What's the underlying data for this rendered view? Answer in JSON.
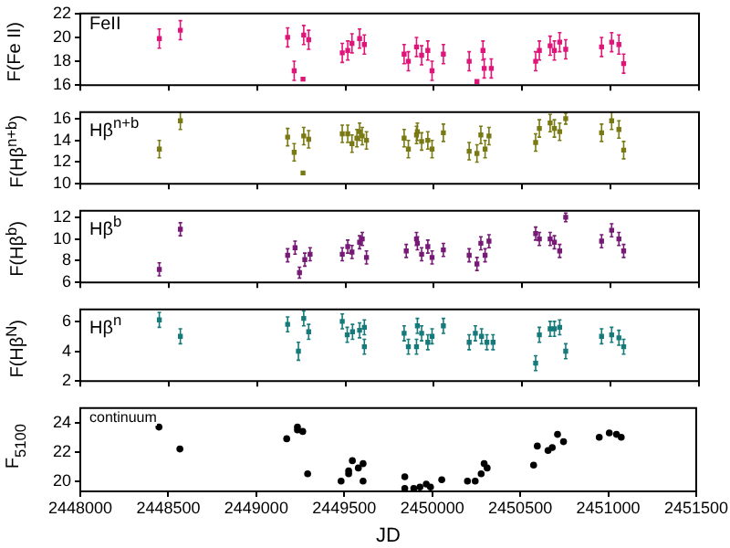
{
  "chart_data": [
    {
      "type": "scatter",
      "ylabel": "F(Fe II)",
      "annotations": [
        "FeII"
      ],
      "marker": "square",
      "tick_labels": "y",
      "xlim": [
        2448000,
        2451500
      ],
      "xticks": [
        2448000,
        2448500,
        2449000,
        2449500,
        2450000,
        2450500,
        2451000,
        2451500
      ],
      "ylim": [
        16,
        22
      ],
      "yticks": [
        16,
        18,
        20,
        22
      ],
      "x": [
        2448447,
        2448566,
        2449173,
        2449210,
        2449260,
        2449264,
        2449292,
        2449482,
        2449513,
        2449537,
        2449580,
        2449607,
        2449832,
        2449856,
        2449902,
        2449931,
        2449966,
        2449990,
        2450054,
        2450200,
        2450244,
        2450278,
        2450285,
        2450325,
        2450576,
        2450597,
        2450658,
        2450682,
        2450712,
        2450746,
        2450949,
        2451006,
        2451047,
        2451074
      ],
      "series": [
        {
          "color": "#e0157a",
          "values": [
            19.9,
            20.6,
            20.0,
            17.2,
            16.5,
            20.2,
            19.8,
            18.7,
            18.9,
            19.5,
            19.9,
            19.4,
            18.6,
            18.0,
            19.2,
            18.5,
            18.9,
            17.2,
            18.6,
            18.0,
            16.3,
            18.9,
            17.4,
            17.4,
            18.0,
            18.9,
            19.3,
            18.9,
            19.6,
            19.0,
            19.2,
            19.6,
            19.4,
            17.8
          ],
          "errors": [
            0.8,
            0.8,
            0.8,
            0.8,
            null,
            0.8,
            0.8,
            0.8,
            0.8,
            0.8,
            0.8,
            0.8,
            0.8,
            0.8,
            0.8,
            0.8,
            0.8,
            0.8,
            0.8,
            0.8,
            null,
            0.8,
            0.8,
            0.8,
            0.8,
            0.8,
            0.8,
            0.8,
            0.8,
            0.8,
            0.8,
            0.8,
            0.8,
            0.8
          ]
        }
      ]
    },
    {
      "type": "scatter",
      "ylabel": "F(Hβ$^{n+b}$)",
      "annotations": [
        "Hβ$^{n+b}$"
      ],
      "marker": "square",
      "tick_labels": "y",
      "xlim": [
        2448000,
        2451500
      ],
      "xticks": [
        2448000,
        2448500,
        2449000,
        2449500,
        2450000,
        2450500,
        2451000,
        2451500
      ],
      "ylim": [
        10,
        16.6
      ],
      "yticks": [
        10,
        12,
        14,
        16
      ],
      "x": [
        2448447,
        2448566,
        2449173,
        2449210,
        2449260,
        2449264,
        2449292,
        2449482,
        2449513,
        2449537,
        2449565,
        2449580,
        2449595,
        2449619,
        2449832,
        2449856,
        2449902,
        2449907,
        2449931,
        2449966,
        2449990,
        2450054,
        2450200,
        2450244,
        2450266,
        2450290,
        2450312,
        2450576,
        2450597,
        2450658,
        2450682,
        2450712,
        2450746,
        2450949,
        2451006,
        2451047,
        2451074
      ],
      "series": [
        {
          "color": "#7a7a14",
          "values": [
            13.2,
            15.8,
            14.3,
            12.9,
            11.0,
            14.4,
            14.1,
            14.6,
            14.6,
            13.7,
            14.2,
            14.8,
            14.4,
            14.0,
            14.2,
            13.2,
            14.5,
            14.8,
            13.9,
            14.0,
            13.2,
            14.7,
            13.0,
            12.8,
            14.5,
            13.2,
            14.4,
            13.8,
            15.1,
            15.6,
            15.1,
            14.8,
            16.0,
            14.7,
            15.8,
            15.0,
            13.1
          ],
          "errors": [
            0.8,
            0.8,
            0.8,
            0.8,
            null,
            0.8,
            0.8,
            0.8,
            0.8,
            0.8,
            0.8,
            0.8,
            0.8,
            0.8,
            0.8,
            0.8,
            0.8,
            0.8,
            0.8,
            0.8,
            0.8,
            0.8,
            0.8,
            0.8,
            0.8,
            0.8,
            0.8,
            0.8,
            0.8,
            0.8,
            0.8,
            0.8,
            0.5,
            0.8,
            0.8,
            0.8,
            0.8
          ]
        }
      ]
    },
    {
      "type": "scatter",
      "ylabel": "F(Hβ$^{b}$)",
      "annotations": [
        "Hβ$^{b}$"
      ],
      "marker": "square",
      "tick_labels": "y",
      "xlim": [
        2448000,
        2451500
      ],
      "xticks": [
        2448000,
        2448500,
        2449000,
        2449500,
        2450000,
        2450500,
        2451000,
        2451500
      ],
      "ylim": [
        6,
        12.6
      ],
      "yticks": [
        6,
        8,
        10,
        12
      ],
      "x": [
        2448447,
        2448566,
        2449173,
        2449215,
        2449240,
        2449270,
        2449300,
        2449482,
        2449513,
        2449537,
        2449580,
        2449595,
        2449619,
        2449844,
        2449902,
        2449907,
        2449931,
        2449966,
        2449990,
        2450054,
        2450200,
        2450244,
        2450266,
        2450290,
        2450312,
        2450576,
        2450597,
        2450658,
        2450682,
        2450712,
        2450746,
        2450949,
        2451006,
        2451047,
        2451074
      ],
      "series": [
        {
          "color": "#761a76",
          "values": [
            7.2,
            10.9,
            8.5,
            9.2,
            6.9,
            8.1,
            8.6,
            8.6,
            9.3,
            8.8,
            9.7,
            10.0,
            8.3,
            8.9,
            10.0,
            9.6,
            8.6,
            9.3,
            8.3,
            9.0,
            8.5,
            7.7,
            9.6,
            8.5,
            9.8,
            10.5,
            10.0,
            10.0,
            9.7,
            8.9,
            12.0,
            9.8,
            10.8,
            10.0,
            8.9
          ],
          "errors": [
            0.6,
            0.6,
            0.6,
            0.6,
            0.5,
            0.6,
            0.6,
            0.6,
            0.6,
            0.6,
            0.6,
            0.6,
            0.6,
            0.6,
            0.6,
            0.6,
            0.6,
            0.6,
            0.6,
            0.6,
            0.6,
            0.6,
            0.6,
            0.6,
            0.6,
            0.6,
            0.6,
            0.6,
            0.6,
            0.6,
            0.4,
            0.6,
            0.6,
            0.6,
            0.6
          ]
        }
      ]
    },
    {
      "type": "scatter",
      "ylabel": "F(Hβ$^{N}$)",
      "annotations": [
        "Hβ$^{n}$"
      ],
      "marker": "square",
      "tick_labels": "y",
      "xlim": [
        2448000,
        2451500
      ],
      "xticks": [
        2448000,
        2448500,
        2449000,
        2449500,
        2450000,
        2450500,
        2451000,
        2451500
      ],
      "ylim": [
        2,
        6.8
      ],
      "yticks": [
        2,
        4,
        6
      ],
      "x": [
        2448447,
        2448566,
        2449173,
        2449234,
        2449264,
        2449292,
        2449482,
        2449510,
        2449540,
        2449580,
        2449607,
        2449607,
        2449832,
        2449856,
        2449902,
        2449907,
        2449931,
        2449966,
        2449990,
        2450054,
        2450200,
        2450235,
        2450270,
        2450300,
        2450335,
        2450576,
        2450597,
        2450658,
        2450682,
        2450712,
        2450746,
        2450949,
        2451006,
        2451047,
        2451074
      ],
      "series": [
        {
          "color": "#167a7a",
          "values": [
            6.1,
            5.0,
            5.8,
            4.0,
            6.2,
            5.3,
            6.0,
            5.1,
            5.3,
            5.4,
            5.6,
            4.3,
            5.2,
            4.3,
            4.3,
            5.7,
            5.2,
            4.6,
            5.0,
            5.7,
            4.6,
            5.2,
            5.0,
            4.6,
            4.6,
            3.2,
            5.1,
            5.5,
            5.5,
            5.6,
            4.0,
            5.0,
            5.1,
            4.9,
            4.3
          ],
          "errors": [
            0.5,
            0.5,
            0.5,
            0.6,
            0.5,
            0.5,
            0.5,
            0.5,
            0.5,
            0.5,
            0.5,
            0.5,
            0.5,
            0.5,
            0.5,
            0.5,
            0.5,
            0.5,
            0.5,
            0.5,
            0.5,
            0.5,
            0.5,
            0.5,
            0.5,
            0.5,
            0.5,
            0.5,
            0.5,
            0.5,
            0.5,
            0.5,
            0.5,
            0.5,
            0.5
          ]
        }
      ]
    },
    {
      "type": "scatter",
      "ylabel": "F$_{5100}$",
      "xlabel": "JD",
      "annotations": [
        "continuum"
      ],
      "marker": "circle",
      "xlim": [
        2448000,
        2451500
      ],
      "xticks": [
        2448000,
        2448500,
        2449000,
        2449500,
        2450000,
        2450500,
        2451000,
        2451500
      ],
      "ylim": [
        19.3,
        25
      ],
      "yticks": [
        20,
        22,
        24
      ],
      "x": [
        2448447,
        2448566,
        2449173,
        2449234,
        2449234,
        2449264,
        2449292,
        2449482,
        2449525,
        2449525,
        2449546,
        2449580,
        2449607,
        2449607,
        2449844,
        2449844,
        2449895,
        2449930,
        2449966,
        2449990,
        2450054,
        2450200,
        2450244,
        2450278,
        2450295,
        2450312,
        2450576,
        2450597,
        2450658,
        2450682,
        2450712,
        2450746,
        2450949,
        2451006,
        2451047,
        2451074
      ],
      "series": [
        {
          "color": "#000000",
          "values": [
            23.7,
            22.2,
            22.9,
            23.7,
            23.5,
            23.4,
            20.5,
            20.0,
            20.5,
            20.7,
            21.4,
            20.9,
            21.2,
            20.0,
            20.3,
            19.5,
            19.5,
            19.6,
            19.8,
            19.6,
            20.1,
            20.0,
            20.0,
            20.5,
            21.2,
            20.9,
            21.1,
            22.4,
            22.1,
            22.3,
            23.2,
            22.7,
            23.0,
            23.3,
            23.2,
            23.0
          ]
        }
      ]
    }
  ]
}
